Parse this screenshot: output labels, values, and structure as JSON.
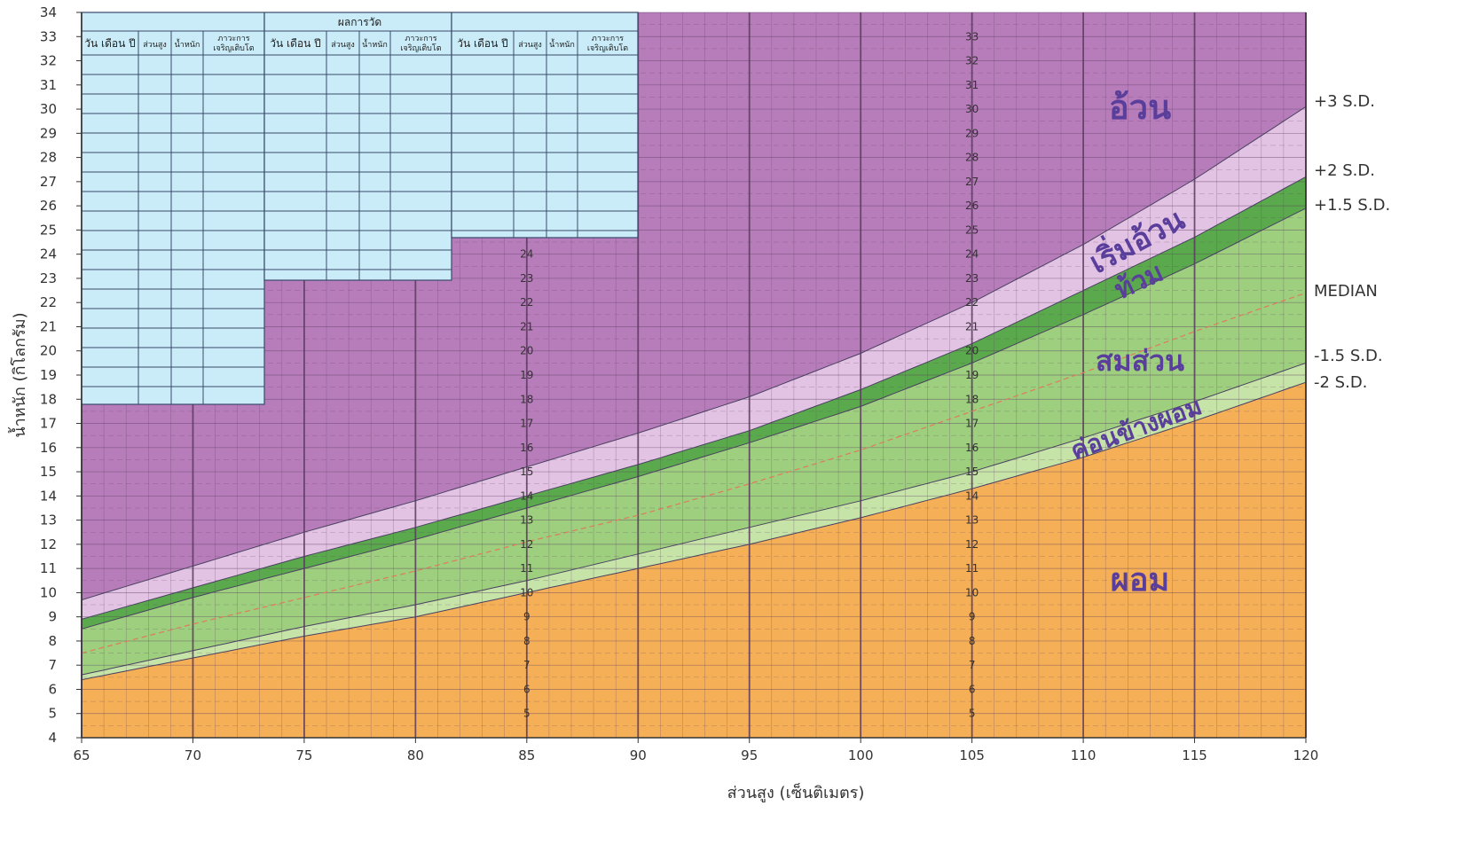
{
  "chart_data": {
    "type": "area",
    "title": "",
    "xlabel": "ส่วนสูง (เซ็นติเมตร)",
    "ylabel": "น้ำหนัก (กิโลกรัม)",
    "xlim": [
      65,
      120
    ],
    "ylim": [
      4,
      34
    ],
    "x_ticks": [
      65,
      70,
      75,
      80,
      85,
      90,
      95,
      100,
      105,
      110,
      115,
      120
    ],
    "y_ticks": [
      4,
      5,
      6,
      7,
      8,
      9,
      10,
      11,
      12,
      13,
      14,
      15,
      16,
      17,
      18,
      19,
      20,
      21,
      22,
      23,
      24,
      25,
      26,
      27,
      28,
      29,
      30,
      31,
      32,
      33,
      34
    ],
    "grid": true,
    "x": [
      65,
      70,
      75,
      80,
      85,
      90,
      95,
      100,
      105,
      110,
      115,
      120
    ],
    "series": [
      {
        "name": "+3 S.D.",
        "values": [
          9.7,
          11.1,
          12.5,
          13.8,
          15.2,
          16.6,
          18.1,
          19.9,
          22.0,
          24.4,
          27.1,
          30.1
        ]
      },
      {
        "name": "+2 S.D.",
        "values": [
          8.9,
          10.2,
          11.5,
          12.7,
          14.0,
          15.3,
          16.7,
          18.4,
          20.3,
          22.5,
          24.7,
          27.2
        ]
      },
      {
        "name": "+1.5 S.D.",
        "values": [
          8.5,
          9.8,
          11.0,
          12.2,
          13.5,
          14.8,
          16.2,
          17.7,
          19.5,
          21.5,
          23.6,
          25.9
        ]
      },
      {
        "name": "MEDIAN",
        "values": [
          7.5,
          8.7,
          9.8,
          10.9,
          12.1,
          13.2,
          14.5,
          15.9,
          17.5,
          19.1,
          20.8,
          22.4
        ]
      },
      {
        "name": "-1.5 S.D.",
        "values": [
          6.6,
          7.6,
          8.6,
          9.5,
          10.5,
          11.6,
          12.7,
          13.8,
          15.0,
          16.4,
          17.9,
          19.5
        ]
      },
      {
        "name": "-2 S.D.",
        "values": [
          6.4,
          7.3,
          8.2,
          9.0,
          10.0,
          11.0,
          12.0,
          13.1,
          14.3,
          15.6,
          17.1,
          18.7
        ]
      }
    ],
    "zones": [
      {
        "label": "อ้วน",
        "color": "#b77dba"
      },
      {
        "label": "เริ่มอ้วน",
        "color": "#e3c3e3"
      },
      {
        "label": "ท้วม",
        "color": "#5aaa4d"
      },
      {
        "label": "สมส่วน",
        "color": "#9dcf7f"
      },
      {
        "label": "ค่อนข้างผอม",
        "color": "#c6e3a8"
      },
      {
        "label": "ผอม",
        "color": "#f5b057"
      }
    ],
    "zone_label_color": "#5a3e9c",
    "grid_color": "#5a3a5e",
    "table": {
      "title": "ผลการวัด",
      "background": "#c9ecf8",
      "line_color": "#3a4a6a",
      "columns": [
        "วัน เดือน ปี",
        "ส่วนสูง",
        "น้ำหนัก",
        "ภาวะการ เจริญเติบโต"
      ]
    }
  }
}
